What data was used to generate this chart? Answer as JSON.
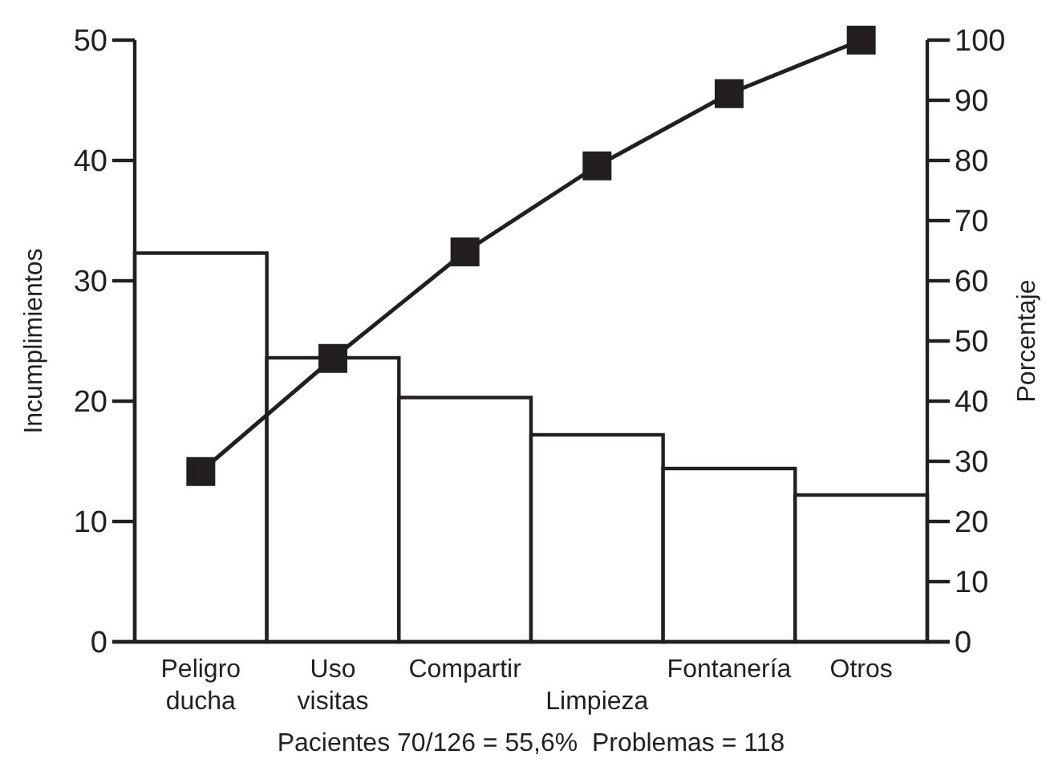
{
  "chart_data": {
    "type": "bar",
    "categories": [
      "Peligro ducha",
      "Uso visitas",
      "Compartir",
      "Limpieza",
      "Fontanería",
      "Otros"
    ],
    "series": [
      {
        "color": "#ffffff",
        "values": [
          32.3,
          23.6,
          20.3,
          17.2,
          14.4,
          12.2
        ]
      },
      {
        "type": "line",
        "axis": "y2",
        "color": "#231f20",
        "marker": "square",
        "line_style": "solid",
        "values": [
          28.3,
          47.1,
          64.8,
          79.1,
          91.1,
          100
        ]
      }
    ],
    "ylabel": "Incumplimientos",
    "y2label": "Porcentaje",
    "ylim": [
      0,
      50
    ],
    "yticks": [
      0,
      10,
      20,
      30,
      40,
      50
    ],
    "y2lim": [
      0,
      100
    ],
    "y2ticks": [
      0,
      10,
      20,
      30,
      40,
      50,
      60,
      70,
      80,
      90,
      100
    ],
    "annotations": [
      "Pacientes 70/126 = 55,6%  Problemas = 118"
    ],
    "grid": false
  }
}
